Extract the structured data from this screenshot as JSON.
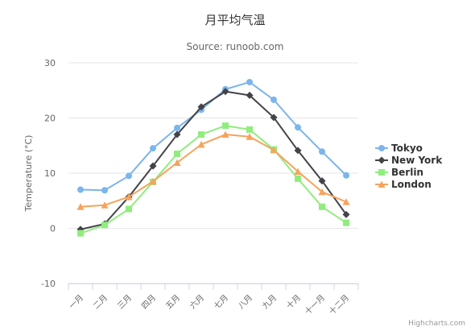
{
  "chart_data": {
    "type": "line",
    "title": "月平均气温",
    "subtitle": "Source: runoob.com",
    "ylabel": "Temperature (°C)",
    "xlabel": "",
    "categories": [
      "一月",
      "二月",
      "三月",
      "四月",
      "五月",
      "六月",
      "七月",
      "八月",
      "九月",
      "十月",
      "十一月",
      "十二月"
    ],
    "ylim": [
      -10,
      30
    ],
    "yticks": [
      -10,
      0,
      10,
      20,
      30
    ],
    "grid": true,
    "legend_position": "right",
    "series": [
      {
        "name": "Tokyo",
        "color": "#7cb5ec",
        "marker": "circle",
        "values": [
          7.0,
          6.9,
          9.5,
          14.5,
          18.2,
          21.5,
          25.2,
          26.5,
          23.3,
          18.3,
          13.9,
          9.6
        ]
      },
      {
        "name": "New York",
        "color": "#434348",
        "marker": "diamond",
        "values": [
          -0.2,
          0.8,
          5.7,
          11.3,
          17.0,
          22.0,
          24.8,
          24.1,
          20.1,
          14.1,
          8.6,
          2.5
        ]
      },
      {
        "name": "Berlin",
        "color": "#90ed7d",
        "marker": "square",
        "values": [
          -0.9,
          0.6,
          3.5,
          8.4,
          13.5,
          17.0,
          18.6,
          17.9,
          14.3,
          9.0,
          3.9,
          1.0
        ]
      },
      {
        "name": "London",
        "color": "#f7a35c",
        "marker": "triangle",
        "values": [
          3.9,
          4.2,
          5.7,
          8.5,
          11.9,
          15.2,
          17.0,
          16.6,
          14.2,
          10.3,
          6.6,
          4.8
        ]
      }
    ]
  },
  "credits": "Highcharts.com"
}
